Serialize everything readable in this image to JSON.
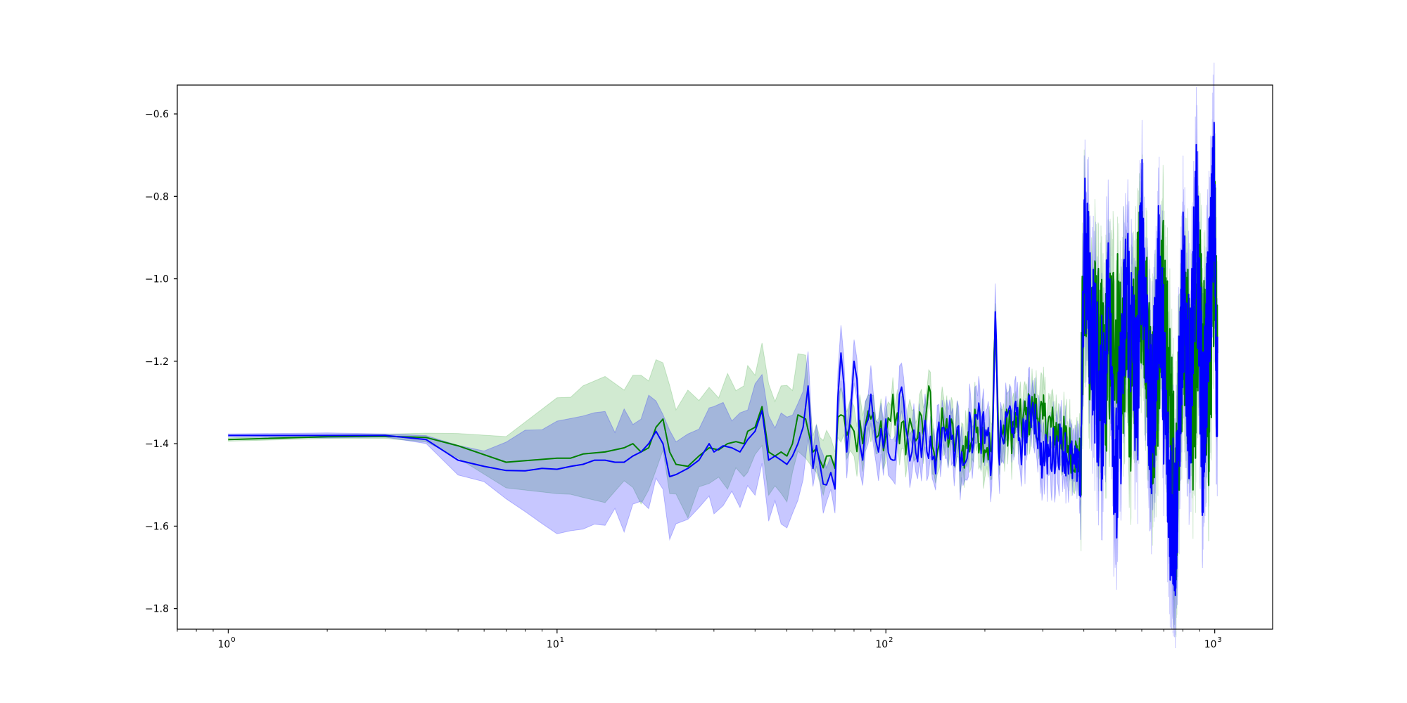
{
  "colors": {
    "green": "#008000",
    "blue": "#0000ff",
    "green_fill": "#2ca02c",
    "blue_fill": "#0000ff"
  },
  "chart_data": {
    "type": "line",
    "title": "",
    "xlabel": "",
    "ylabel": "",
    "xscale": "log",
    "xlim": [
      0.7,
      1500
    ],
    "ylim": [
      -1.85,
      -0.53
    ],
    "grid": false,
    "x_ticks": [
      {
        "base": "10",
        "exp": "0",
        "value": 1
      },
      {
        "base": "10",
        "exp": "1",
        "value": 10
      },
      {
        "base": "10",
        "exp": "2",
        "value": 100
      },
      {
        "base": "10",
        "exp": "3",
        "value": 1000
      }
    ],
    "y_ticks": [
      {
        "label": "−0.6",
        "value": -0.6
      },
      {
        "label": "−0.8",
        "value": -0.8
      },
      {
        "label": "−1.0",
        "value": -1.0
      },
      {
        "label": "−1.2",
        "value": -1.2
      },
      {
        "label": "−1.4",
        "value": -1.4
      },
      {
        "label": "−1.6",
        "value": -1.6
      },
      {
        "label": "−1.8",
        "value": -1.8
      }
    ],
    "series": [
      {
        "color": "green",
        "band": true,
        "points": [
          [
            1,
            -1.39
          ],
          [
            2,
            -1.383
          ],
          [
            3,
            -1.382
          ],
          [
            4,
            -1.385
          ],
          [
            5,
            -1.405
          ],
          [
            7,
            -1.445
          ],
          [
            10,
            -1.435
          ],
          [
            11,
            -1.435
          ],
          [
            12,
            -1.425
          ],
          [
            14,
            -1.42
          ],
          [
            16,
            -1.41
          ],
          [
            17,
            -1.4
          ],
          [
            18,
            -1.42
          ],
          [
            19,
            -1.41
          ],
          [
            20,
            -1.36
          ],
          [
            21,
            -1.34
          ],
          [
            22,
            -1.42
          ],
          [
            23,
            -1.45
          ],
          [
            25,
            -1.455
          ],
          [
            27,
            -1.43
          ],
          [
            29,
            -1.41
          ],
          [
            31,
            -1.415
          ],
          [
            33,
            -1.4
          ],
          [
            35,
            -1.395
          ],
          [
            37,
            -1.4
          ],
          [
            38,
            -1.37
          ],
          [
            40,
            -1.36
          ],
          [
            42,
            -1.31
          ],
          [
            44,
            -1.42
          ],
          [
            46,
            -1.43
          ],
          [
            48,
            -1.42
          ],
          [
            50,
            -1.43
          ],
          [
            52,
            -1.4
          ],
          [
            54,
            -1.33
          ],
          [
            57,
            -1.34
          ],
          [
            60,
            -1.42
          ],
          [
            63,
            -1.44
          ],
          [
            66,
            -1.43
          ],
          [
            70,
            -1.46
          ],
          [
            73,
            -1.33
          ],
          [
            76,
            -1.38
          ],
          [
            80,
            -1.37
          ],
          [
            85,
            -1.4
          ],
          [
            90,
            -1.34
          ],
          [
            95,
            -1.38
          ],
          [
            100,
            -1.38
          ],
          [
            105,
            -1.28
          ],
          [
            110,
            -1.4
          ],
          [
            120,
            -1.36
          ],
          [
            130,
            -1.38
          ],
          [
            135,
            -1.26
          ],
          [
            140,
            -1.42
          ],
          [
            150,
            -1.36
          ],
          [
            170,
            -1.42
          ],
          [
            190,
            -1.36
          ],
          [
            210,
            -1.42
          ],
          [
            215,
            -1.12
          ],
          [
            220,
            -1.38
          ],
          [
            250,
            -1.36
          ],
          [
            280,
            -1.32
          ],
          [
            300,
            -1.34
          ],
          [
            340,
            -1.38
          ],
          [
            390,
            -1.44
          ],
          [
            400,
            -1.02
          ],
          [
            430,
            -1.14
          ],
          [
            460,
            -1.24
          ],
          [
            500,
            -1.1
          ],
          [
            560,
            -1.26
          ],
          [
            600,
            -0.98
          ],
          [
            650,
            -1.32
          ],
          [
            700,
            -1.05
          ],
          [
            760,
            -1.55
          ],
          [
            800,
            -1.1
          ],
          [
            860,
            -1.3
          ],
          [
            900,
            -1.08
          ],
          [
            960,
            -1.32
          ],
          [
            1000,
            -0.86
          ],
          [
            1020,
            -1.18
          ]
        ]
      },
      {
        "color": "blue",
        "band": true,
        "points": [
          [
            1,
            -1.38
          ],
          [
            2,
            -1.38
          ],
          [
            3,
            -1.38
          ],
          [
            4,
            -1.39
          ],
          [
            5,
            -1.44
          ],
          [
            6,
            -1.455
          ],
          [
            7,
            -1.465
          ],
          [
            8,
            -1.466
          ],
          [
            9,
            -1.46
          ],
          [
            10,
            -1.462
          ],
          [
            11,
            -1.455
          ],
          [
            12,
            -1.45
          ],
          [
            13,
            -1.44
          ],
          [
            14,
            -1.44
          ],
          [
            15,
            -1.445
          ],
          [
            16,
            -1.445
          ],
          [
            17,
            -1.43
          ],
          [
            18,
            -1.42
          ],
          [
            19,
            -1.4
          ],
          [
            20,
            -1.37
          ],
          [
            21,
            -1.4
          ],
          [
            22,
            -1.48
          ],
          [
            23,
            -1.475
          ],
          [
            25,
            -1.46
          ],
          [
            27,
            -1.44
          ],
          [
            29,
            -1.4
          ],
          [
            30,
            -1.42
          ],
          [
            32,
            -1.405
          ],
          [
            34,
            -1.41
          ],
          [
            36,
            -1.42
          ],
          [
            38,
            -1.39
          ],
          [
            40,
            -1.37
          ],
          [
            42,
            -1.32
          ],
          [
            44,
            -1.44
          ],
          [
            46,
            -1.43
          ],
          [
            48,
            -1.44
          ],
          [
            50,
            -1.45
          ],
          [
            52,
            -1.43
          ],
          [
            54,
            -1.4
          ],
          [
            56,
            -1.36
          ],
          [
            58,
            -1.26
          ],
          [
            60,
            -1.46
          ],
          [
            63,
            -1.45
          ],
          [
            66,
            -1.5
          ],
          [
            68,
            -1.47
          ],
          [
            70,
            -1.51
          ],
          [
            73,
            -1.18
          ],
          [
            76,
            -1.42
          ],
          [
            80,
            -1.2
          ],
          [
            85,
            -1.44
          ],
          [
            90,
            -1.28
          ],
          [
            95,
            -1.42
          ],
          [
            100,
            -1.34
          ],
          [
            105,
            -1.44
          ],
          [
            110,
            -1.28
          ],
          [
            120,
            -1.42
          ],
          [
            130,
            -1.38
          ],
          [
            140,
            -1.43
          ],
          [
            150,
            -1.36
          ],
          [
            170,
            -1.42
          ],
          [
            190,
            -1.34
          ],
          [
            210,
            -1.44
          ],
          [
            215,
            -1.08
          ],
          [
            220,
            -1.42
          ],
          [
            240,
            -1.32
          ],
          [
            260,
            -1.4
          ],
          [
            280,
            -1.3
          ],
          [
            300,
            -1.44
          ],
          [
            340,
            -1.4
          ],
          [
            390,
            -1.48
          ],
          [
            400,
            -0.94
          ],
          [
            420,
            -1.08
          ],
          [
            450,
            -1.34
          ],
          [
            480,
            -1.0
          ],
          [
            500,
            -1.54
          ],
          [
            540,
            -1.0
          ],
          [
            580,
            -1.3
          ],
          [
            600,
            -0.86
          ],
          [
            640,
            -1.4
          ],
          [
            680,
            -0.98
          ],
          [
            720,
            -1.48
          ],
          [
            760,
            -1.6
          ],
          [
            800,
            -1.04
          ],
          [
            840,
            -1.3
          ],
          [
            880,
            -0.86
          ],
          [
            920,
            -1.4
          ],
          [
            960,
            -1.06
          ],
          [
            1000,
            -0.78
          ],
          [
            1010,
            -1.3
          ],
          [
            1020,
            -1.14
          ]
        ]
      }
    ]
  }
}
